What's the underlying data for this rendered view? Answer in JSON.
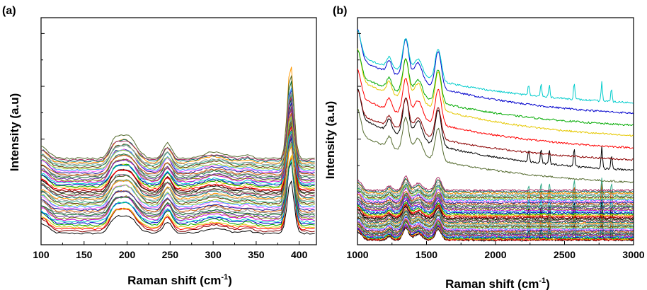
{
  "chart_data": [
    {
      "panel": "(a)",
      "type": "line",
      "xlabel": "Raman shift (cm-1)",
      "ylabel": "Intensity (a.u)",
      "xlim": [
        100,
        420
      ],
      "x_ticks": [
        "100",
        "150",
        "200",
        "250",
        "300",
        "350",
        "400"
      ],
      "y_tick_labels_shown": false,
      "y_range_norm": [
        0,
        1
      ],
      "series_count": 48,
      "peaks_cm1": [
        200,
        247,
        302,
        390
      ],
      "offset_range_norm": [
        0.1,
        0.42
      ],
      "representative_series": [
        {
          "x": [
            100,
            110,
            150,
            180,
            200,
            215,
            235,
            247,
            260,
            300,
            340,
            380,
            390,
            400,
            420
          ],
          "y": [
            0.1,
            0.05,
            0.05,
            0.06,
            0.16,
            0.08,
            0.08,
            0.12,
            0.06,
            0.08,
            0.06,
            0.07,
            0.38,
            0.08,
            0.05
          ]
        },
        {
          "x": [
            100,
            110,
            150,
            180,
            200,
            215,
            235,
            247,
            260,
            300,
            340,
            380,
            390,
            400,
            420
          ],
          "y": [
            0.47,
            0.37,
            0.37,
            0.4,
            0.47,
            0.41,
            0.42,
            0.46,
            0.4,
            0.43,
            0.41,
            0.43,
            0.86,
            0.46,
            0.39
          ]
        }
      ]
    },
    {
      "panel": "(b)",
      "type": "line",
      "xlabel": "Raman shift (cm-1)",
      "ylabel": "Intensity (a.u)",
      "xlim": [
        1000,
        3000
      ],
      "x_ticks": [
        "1000",
        "1500",
        "2000",
        "2500",
        "3000"
      ],
      "y_tick_labels_shown": false,
      "y_range_norm": [
        0,
        1
      ],
      "series_count": 55,
      "peaks_cm1": [
        1230,
        1350,
        1440,
        1590,
        2240,
        2330,
        2390,
        2570,
        2770,
        2840
      ],
      "representative_series": [
        {
          "x": [
            1000,
            1050,
            1200,
            1300,
            1350,
            1420,
            1500,
            1570,
            1650,
            1800,
            2000,
            2300,
            2500,
            2700,
            3000
          ],
          "y": [
            0.03,
            0.02,
            0.02,
            0.03,
            0.07,
            0.03,
            0.04,
            0.07,
            0.03,
            0.02,
            0.02,
            0.02,
            0.02,
            0.02,
            0.02
          ]
        },
        {
          "x": [
            1000,
            1050,
            1200,
            1300,
            1350,
            1420,
            1500,
            1570,
            1650,
            1800,
            2000,
            2300,
            2500,
            2700,
            3000
          ],
          "y": [
            0.78,
            0.65,
            0.64,
            0.76,
            0.98,
            0.8,
            0.88,
            0.94,
            0.62,
            0.43,
            0.4,
            0.38,
            0.33,
            0.29,
            0.24
          ]
        }
      ]
    }
  ],
  "figure": {
    "panel_a_letter": "(a)",
    "panel_b_letter": "(b)",
    "ylabel_a": "Intensity (a.u)",
    "ylabel_b": "Intensity (a.u)",
    "xlabel_a_main": "Raman shift (cm",
    "xlabel_a_sup": "-1",
    "xlabel_a_end": ")",
    "xlabel_b_main": "Raman shift (cm",
    "xlabel_b_sup": "-1",
    "xlabel_b_end": ")"
  },
  "palette": [
    "#000000",
    "#8b0000",
    "#ff0000",
    "#e6c800",
    "#00aa00",
    "#0000cc",
    "#00cccc",
    "#cc00cc",
    "#808000",
    "#6a2ca0",
    "#0e6e2e",
    "#7f7f7f",
    "#cc5500",
    "#1f1f99",
    "#ff66ff",
    "#3399ff",
    "#99cc33",
    "#663300",
    "#33aa88",
    "#999999",
    "#ff9900",
    "#006666",
    "#aa3366",
    "#556b2f"
  ]
}
